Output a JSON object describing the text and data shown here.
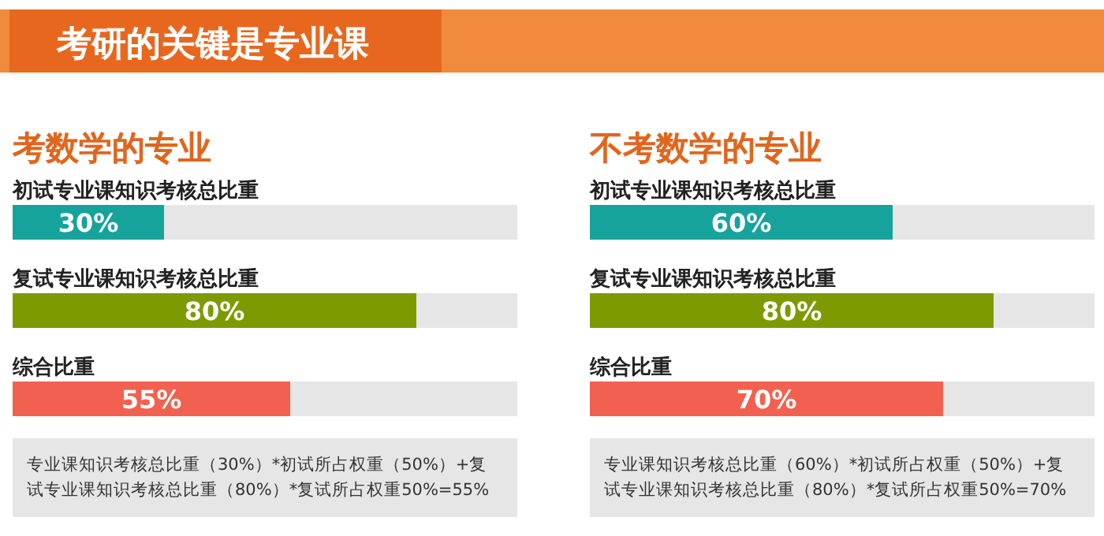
{
  "chart_data": [
    {
      "type": "bar",
      "orientation": "horizontal",
      "title": "考研的关键是专业课",
      "subtitle": "考数学的专业",
      "categories": [
        "初试专业课知识考核总比重",
        "复试专业课知识考核总比重",
        "综合比重"
      ],
      "values": [
        30,
        80,
        55
      ],
      "value_labels": [
        "30%",
        "80%",
        "55%"
      ],
      "colors": [
        "#16a39b",
        "#7d9b00",
        "#f2614f"
      ],
      "xlim": [
        0,
        100
      ],
      "tick_labels": false,
      "annotations": [
        "专业课知识考核总比重（30%）*初试所占权重（50%）+复试专业课知识考核总比重（80%）*复试所占权重50%=55%"
      ]
    },
    {
      "type": "bar",
      "orientation": "horizontal",
      "subtitle": "不考数学的专业",
      "categories": [
        "初试专业课知识考核总比重",
        "复试专业课知识考核总比重",
        "综合比重"
      ],
      "values": [
        60,
        80,
        70
      ],
      "value_labels": [
        "60%",
        "80%",
        "70%"
      ],
      "colors": [
        "#16a39b",
        "#7d9b00",
        "#f2614f"
      ],
      "xlim": [
        0,
        100
      ],
      "tick_labels": false,
      "annotations": [
        "专业课知识考核总比重（60%）*初试所占权重（50%）+复试专业课知识考核总比重（80%）*复试所占权重50%=70%"
      ]
    }
  ]
}
